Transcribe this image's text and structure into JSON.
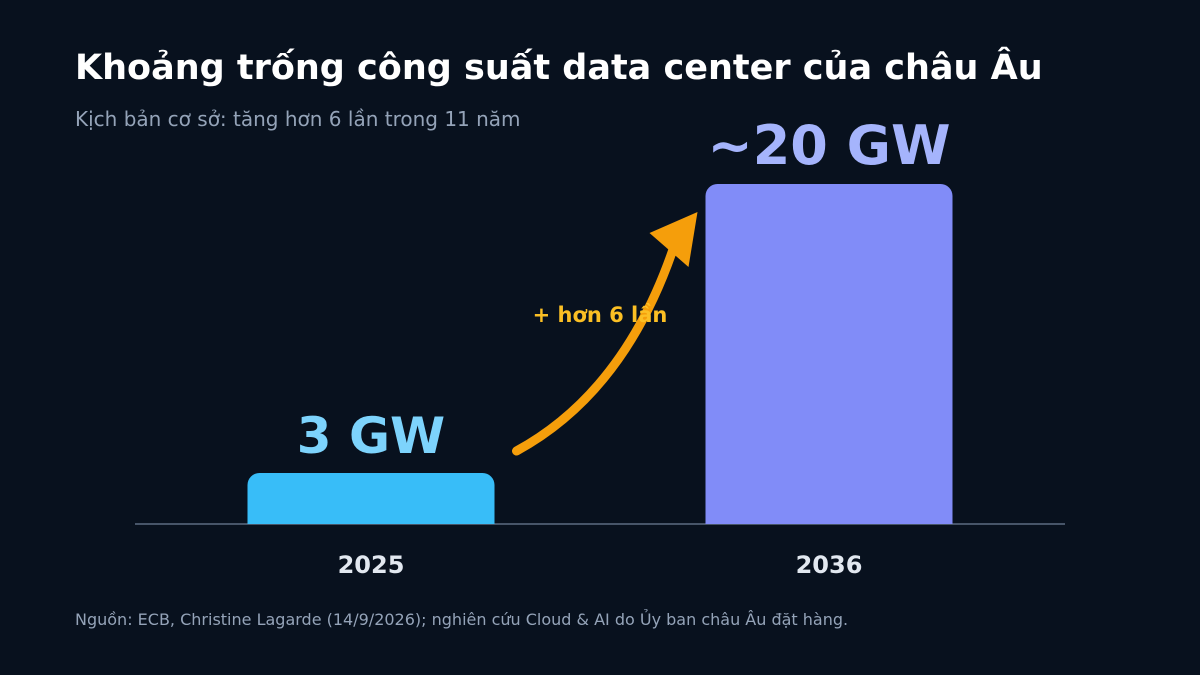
{
  "title": "Khoảng trống công suất data center của châu Âu",
  "subtitle": "Kịch bản cơ sở: tăng hơn 6 lần trong 11 năm",
  "source": "Nguồn: ECB, Christine Lagarde (14/9/2026); nghiên cứu Cloud & AI do Ủy ban châu Âu đặt hàng.",
  "colors": {
    "background": "#08111e",
    "bar_2025": "#38bdf8",
    "bar_2036": "#818cf8",
    "label_2025": "#7dd3fc",
    "label_2036": "#a5b4fc",
    "arrow": "#f59e0b",
    "annotation": "#fbbf24",
    "baseline": "#475569",
    "tick_text": "#e2e8f0"
  },
  "chart_data": {
    "type": "bar",
    "categories": [
      "2025",
      "2036"
    ],
    "values": [
      3,
      20
    ],
    "data_labels": [
      "3 GW",
      "~20 GW"
    ],
    "unit": "GW",
    "ylim": [
      0,
      20
    ],
    "grid": false,
    "annotation": {
      "text": "+ hơn 6 lần",
      "from": "2025",
      "to": "2036"
    }
  }
}
